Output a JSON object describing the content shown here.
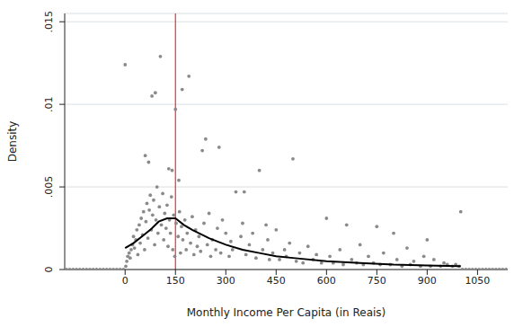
{
  "chart_data": {
    "type": "scatter",
    "x_label": "Monthly Income Per Capita (in Reais)",
    "y_label": "Density",
    "xlim": [
      -180,
      1140
    ],
    "ylim": [
      0,
      0.0155
    ],
    "xticks": [
      0,
      150,
      300,
      450,
      600,
      750,
      900,
      1050
    ],
    "yticks": [
      0,
      {
        "value": 0.005,
        "label": ".005"
      },
      {
        "value": 0.01,
        "label": ".01"
      },
      {
        "value": 0.015,
        "label": ".015"
      }
    ],
    "grid": true,
    "reference_line": {
      "x": 150,
      "color": "#e8312a"
    },
    "series": [
      {
        "type": "scatter",
        "marker": "circle",
        "color": "#8a8a8a",
        "x": [
          -175,
          -165,
          -155,
          -145,
          -135,
          -125,
          -115,
          -105,
          -95,
          -85,
          -75,
          -65,
          -55,
          -45,
          -35,
          -25,
          -15,
          -5,
          1005,
          1015,
          1025,
          1035,
          1045,
          1055,
          1065,
          1075,
          1085,
          1095,
          1105,
          1115,
          1125,
          1135,
          2,
          5,
          8,
          12,
          15,
          18,
          22,
          25,
          28,
          32,
          35,
          38,
          42,
          45,
          48,
          52,
          55,
          58,
          62,
          65,
          68,
          72,
          75,
          78,
          82,
          85,
          88,
          92,
          95,
          98,
          102,
          108,
          112,
          115,
          118,
          122,
          125,
          128,
          132,
          135,
          138,
          142,
          145,
          148,
          152,
          158,
          162,
          165,
          168,
          172,
          178,
          182,
          185,
          195,
          200,
          205,
          210,
          215,
          220,
          225,
          235,
          245,
          250,
          255,
          260,
          270,
          275,
          285,
          290,
          300,
          310,
          315,
          320,
          345,
          350,
          360,
          370,
          380,
          390,
          410,
          425,
          430,
          440,
          450,
          460,
          475,
          480,
          490,
          510,
          520,
          530,
          545,
          560,
          570,
          585,
          610,
          620,
          640,
          650,
          675,
          690,
          700,
          710,
          725,
          740,
          760,
          770,
          790,
          810,
          825,
          840,
          850,
          860,
          880,
          890,
          910,
          920,
          940,
          950,
          960,
          975,
          985,
          995,
          0,
          60,
          70,
          80,
          90,
          105,
          130,
          140,
          150,
          160,
          170,
          190,
          230,
          240,
          280,
          330,
          355,
          400,
          420,
          500,
          600,
          660,
          750,
          800,
          900,
          1000
        ],
        "values": [
          0,
          0,
          0,
          0,
          0,
          0,
          0,
          0,
          0,
          0,
          0,
          0,
          0,
          0,
          0,
          0,
          0,
          0,
          0,
          0,
          0,
          0,
          0,
          0,
          0,
          0,
          0,
          0,
          0,
          0,
          0,
          0,
          0.0002,
          0.0005,
          0.0008,
          0.001,
          0.0007,
          0.0012,
          0.0015,
          0.002,
          0.0013,
          0.0018,
          0.0024,
          0.0009,
          0.0027,
          0.0016,
          0.0031,
          0.0021,
          0.0035,
          0.0012,
          0.0029,
          0.004,
          0.0019,
          0.0036,
          0.0045,
          0.0024,
          0.0033,
          0.0042,
          0.0015,
          0.003,
          0.005,
          0.0022,
          0.0038,
          0.0027,
          0.0046,
          0.0018,
          0.0034,
          0.0025,
          0.0039,
          0.0014,
          0.003,
          0.0022,
          0.0044,
          0.0012,
          0.0033,
          0.0008,
          0.0028,
          0.002,
          0.0035,
          0.001,
          0.0026,
          0.0018,
          0.003,
          0.0012,
          0.0022,
          0.0016,
          0.0032,
          0.0009,
          0.0024,
          0.0014,
          0.002,
          0.0011,
          0.0028,
          0.0015,
          0.0034,
          0.0008,
          0.0018,
          0.0012,
          0.0025,
          0.001,
          0.003,
          0.0022,
          0.0008,
          0.0017,
          0.0012,
          0.002,
          0.0028,
          0.0009,
          0.0015,
          0.0022,
          0.0007,
          0.0012,
          0.0018,
          0.0006,
          0.001,
          0.0024,
          0.0006,
          0.0012,
          0.0008,
          0.0016,
          0.0005,
          0.001,
          0.0004,
          0.0014,
          0.0006,
          0.0009,
          0.0004,
          0.0008,
          0.0004,
          0.0012,
          0.0003,
          0.0006,
          0.0004,
          0.0015,
          0.0003,
          0.0008,
          0.0004,
          0.0003,
          0.001,
          0.0003,
          0.0006,
          0.0002,
          0.0013,
          0.0003,
          0.0005,
          0.0002,
          0.0008,
          0.0002,
          0.0006,
          0.0002,
          0.0004,
          0.0003,
          0.0002,
          0.0003,
          0.0002,
          0.0124,
          0.0069,
          0.0065,
          0.0105,
          0.0107,
          0.0129,
          0.0061,
          0.006,
          0.0097,
          0.0054,
          0.0109,
          0.0117,
          0.0072,
          0.0079,
          0.0074,
          0.0047,
          0.0047,
          0.006,
          0.0027,
          0.0067,
          0.0031,
          0.0027,
          0.0026,
          0.0022,
          0.0018,
          0.0035
        ]
      },
      {
        "type": "line",
        "color": "#000000",
        "x": [
          0,
          25,
          50,
          75,
          100,
          125,
          150,
          175,
          200,
          250,
          300,
          350,
          400,
          450,
          500,
          600,
          700,
          800,
          900,
          1000
        ],
        "values": [
          0.0013,
          0.0016,
          0.002,
          0.0024,
          0.0029,
          0.0031,
          0.0031,
          0.0027,
          0.0024,
          0.0019,
          0.0015,
          0.0012,
          0.001,
          0.0008,
          0.0007,
          0.0005,
          0.0004,
          0.0003,
          0.00025,
          0.0002
        ]
      }
    ]
  }
}
